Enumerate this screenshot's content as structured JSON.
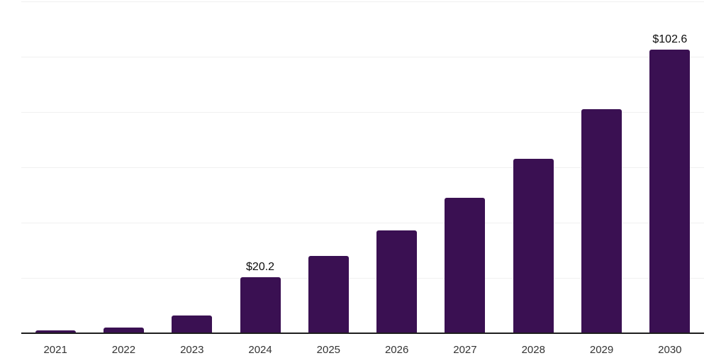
{
  "chart_data": {
    "type": "bar",
    "categories": [
      "2021",
      "2022",
      "2023",
      "2024",
      "2025",
      "2026",
      "2027",
      "2028",
      "2029",
      "2030"
    ],
    "values": [
      1.0,
      2.1,
      6.4,
      20.2,
      27.9,
      37.3,
      48.9,
      63.2,
      81.0,
      102.6
    ],
    "data_labels": [
      "",
      "",
      "",
      "$20.2",
      "",
      "",
      "",
      "",
      "",
      "$102.6"
    ],
    "title": "",
    "xlabel": "",
    "ylabel": "",
    "ylim": [
      0,
      120
    ],
    "grid_step": 20,
    "grid": "horizontal-only",
    "legend": "none",
    "colors": {
      "bar": "#3a1052",
      "axis_line": "#1f1f1f",
      "gridline": "#f0f0f0",
      "tick_label": "#333333",
      "data_label": "#0d0d0d"
    }
  }
}
